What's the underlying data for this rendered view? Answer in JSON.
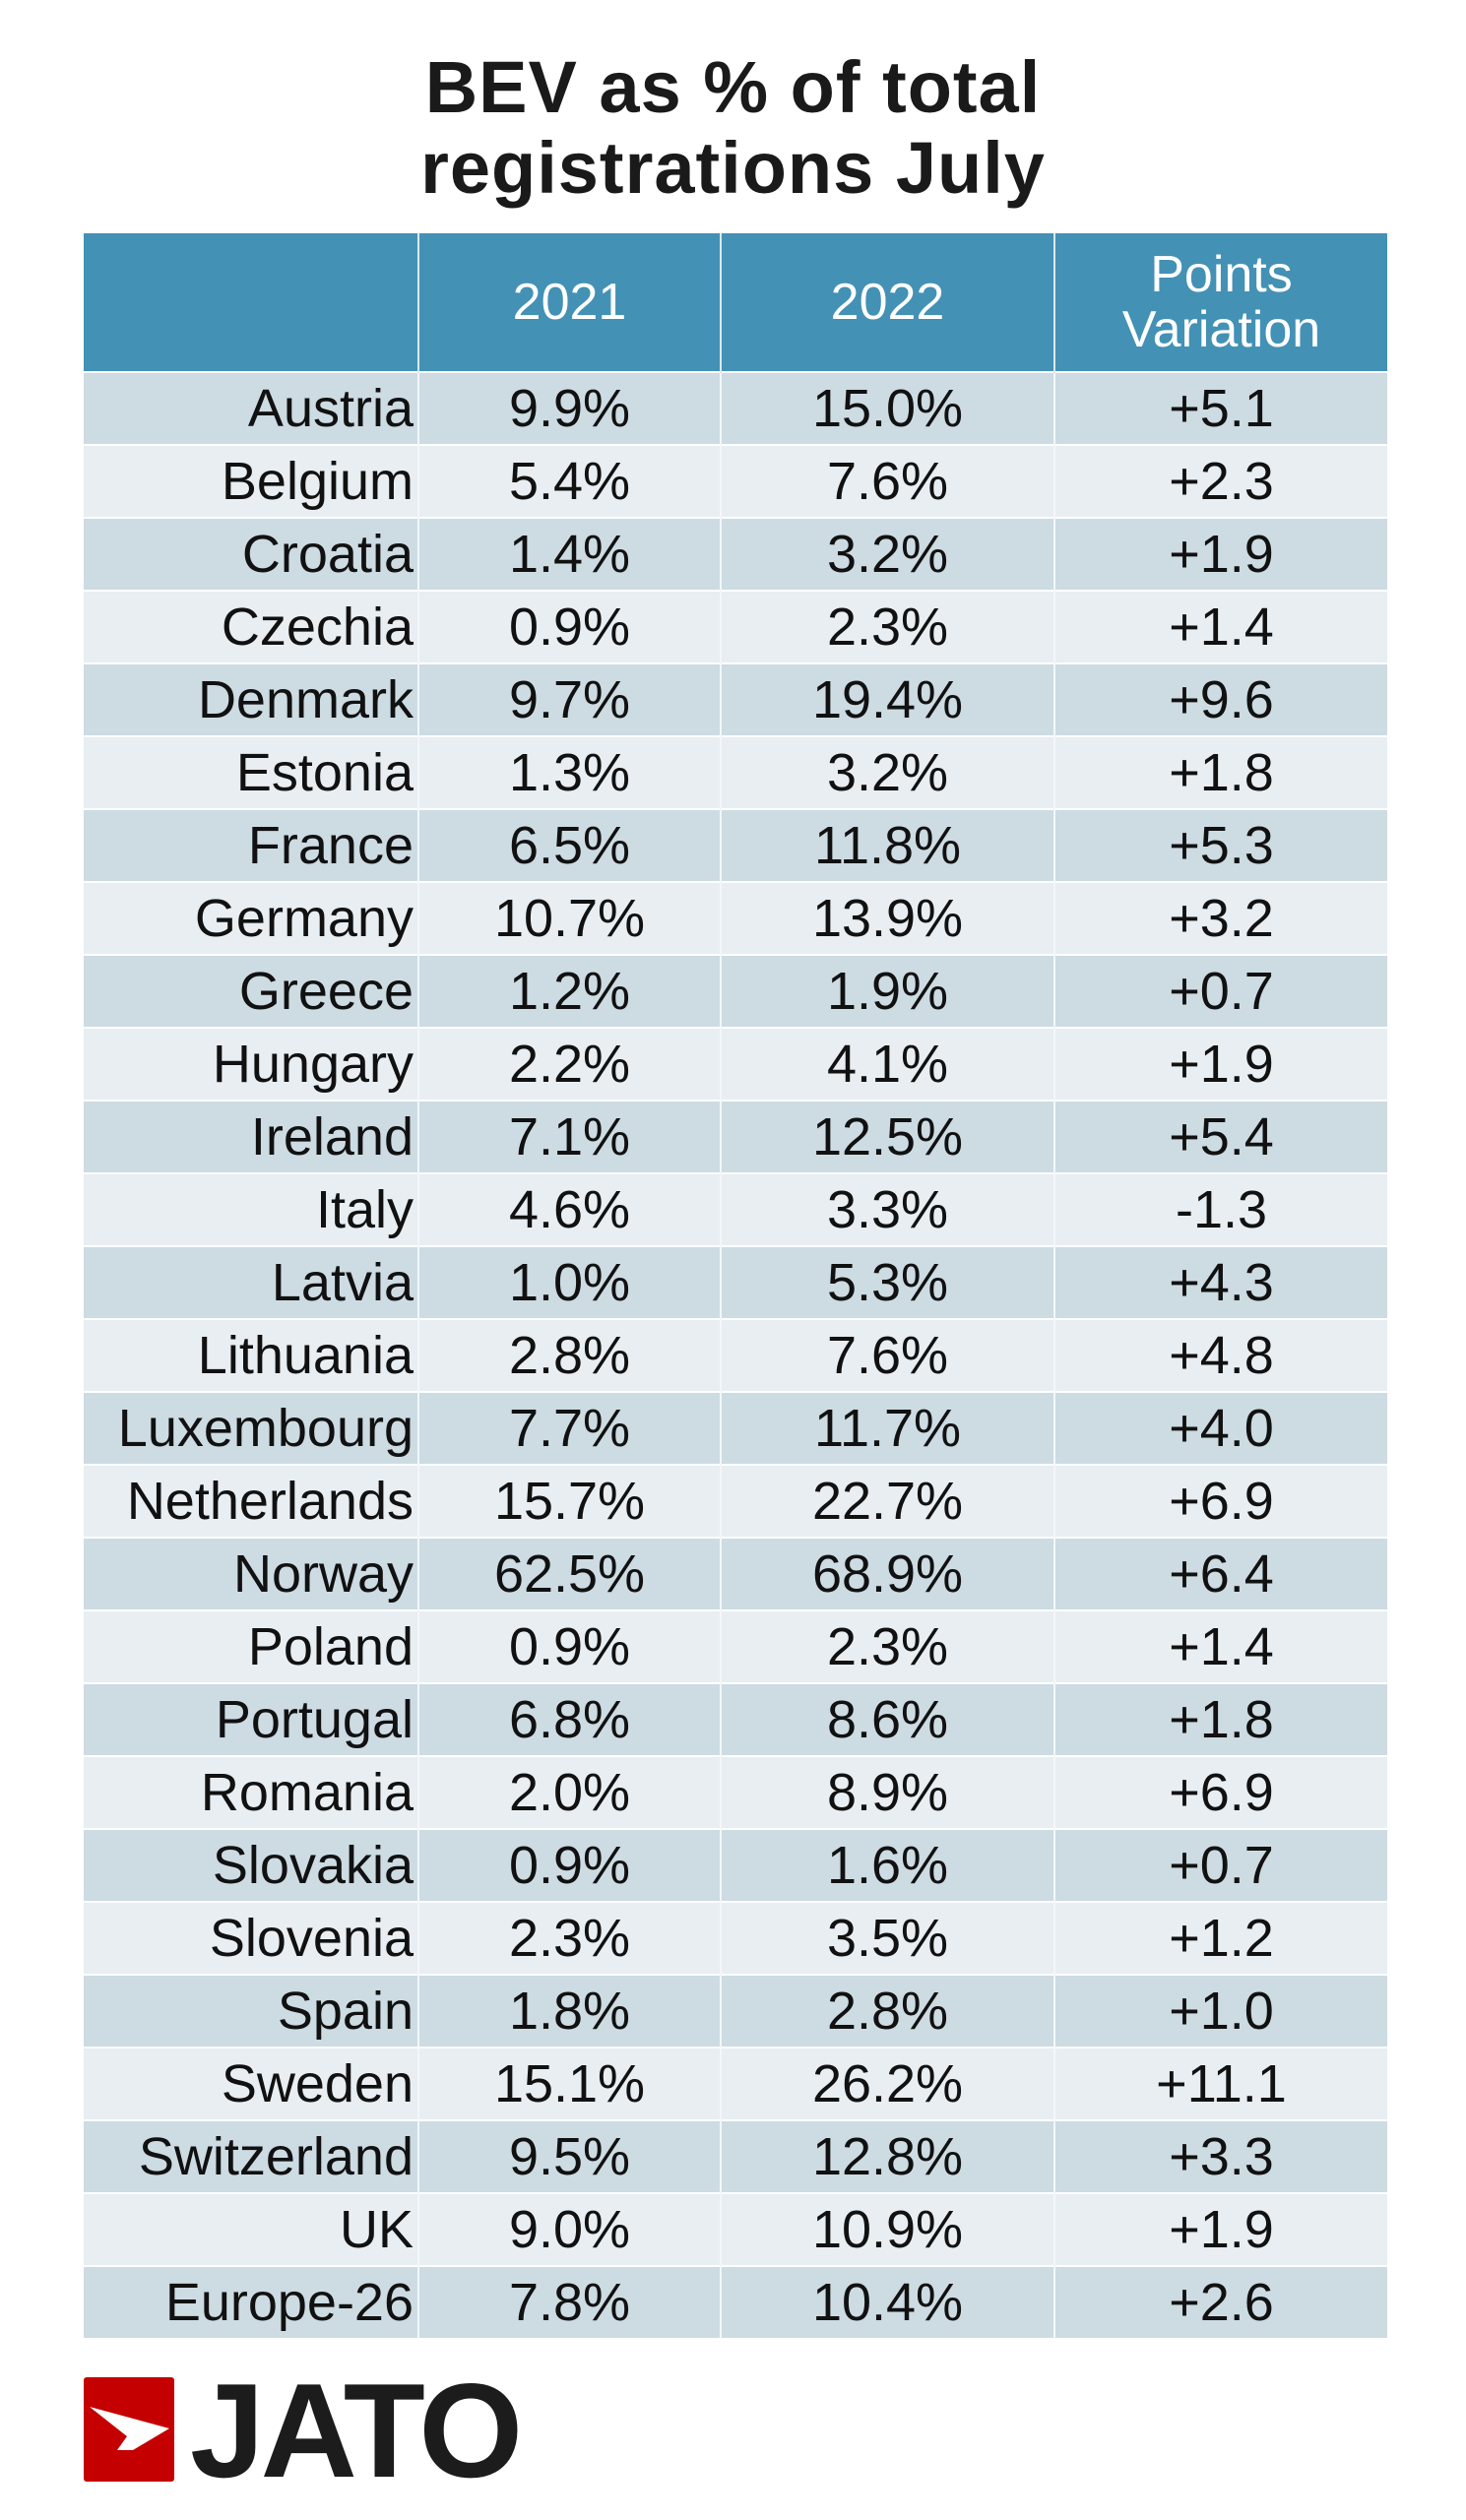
{
  "title": {
    "line1": "BEV as % of total",
    "line2": "registrations July"
  },
  "table": {
    "headers": [
      "",
      "2021",
      "2022",
      "Points Variation"
    ],
    "rows": [
      [
        "Austria",
        "9.9%",
        "15.0%",
        "+5.1"
      ],
      [
        "Belgium",
        "5.4%",
        "7.6%",
        "+2.3"
      ],
      [
        "Croatia",
        "1.4%",
        "3.2%",
        "+1.9"
      ],
      [
        "Czechia",
        "0.9%",
        "2.3%",
        "+1.4"
      ],
      [
        "Denmark",
        "9.7%",
        "19.4%",
        "+9.6"
      ],
      [
        "Estonia",
        "1.3%",
        "3.2%",
        "+1.8"
      ],
      [
        "France",
        "6.5%",
        "11.8%",
        "+5.3"
      ],
      [
        "Germany",
        "10.7%",
        "13.9%",
        "+3.2"
      ],
      [
        "Greece",
        "1.2%",
        "1.9%",
        "+0.7"
      ],
      [
        "Hungary",
        "2.2%",
        "4.1%",
        "+1.9"
      ],
      [
        "Ireland",
        "7.1%",
        "12.5%",
        "+5.4"
      ],
      [
        "Italy",
        "4.6%",
        "3.3%",
        "-1.3"
      ],
      [
        "Latvia",
        "1.0%",
        "5.3%",
        "+4.3"
      ],
      [
        "Lithuania",
        "2.8%",
        "7.6%",
        "+4.8"
      ],
      [
        "Luxembourg",
        "7.7%",
        "11.7%",
        "+4.0"
      ],
      [
        "Netherlands",
        "15.7%",
        "22.7%",
        "+6.9"
      ],
      [
        "Norway",
        "62.5%",
        "68.9%",
        "+6.4"
      ],
      [
        "Poland",
        "0.9%",
        "2.3%",
        "+1.4"
      ],
      [
        "Portugal",
        "6.8%",
        "8.6%",
        "+1.8"
      ],
      [
        "Romania",
        "2.0%",
        "8.9%",
        "+6.9"
      ],
      [
        "Slovakia",
        "0.9%",
        "1.6%",
        "+0.7"
      ],
      [
        "Slovenia",
        "2.3%",
        "3.5%",
        "+1.2"
      ],
      [
        "Spain",
        "1.8%",
        "2.8%",
        "+1.0"
      ],
      [
        "Sweden",
        "15.1%",
        "26.2%",
        "+11.1"
      ],
      [
        "Switzerland",
        "9.5%",
        "12.8%",
        "+3.3"
      ],
      [
        "UK",
        "9.0%",
        "10.9%",
        "+1.9"
      ],
      [
        "Europe-26",
        "7.8%",
        "10.4%",
        "+2.6"
      ]
    ]
  },
  "logo": {
    "text": "JATO",
    "icon": "jato-arrow-logo-icon"
  },
  "colors": {
    "header": "#4391b5",
    "row_odd": "#cddbe3",
    "row_even": "#e8eef2",
    "logo_red": "#c40000"
  }
}
